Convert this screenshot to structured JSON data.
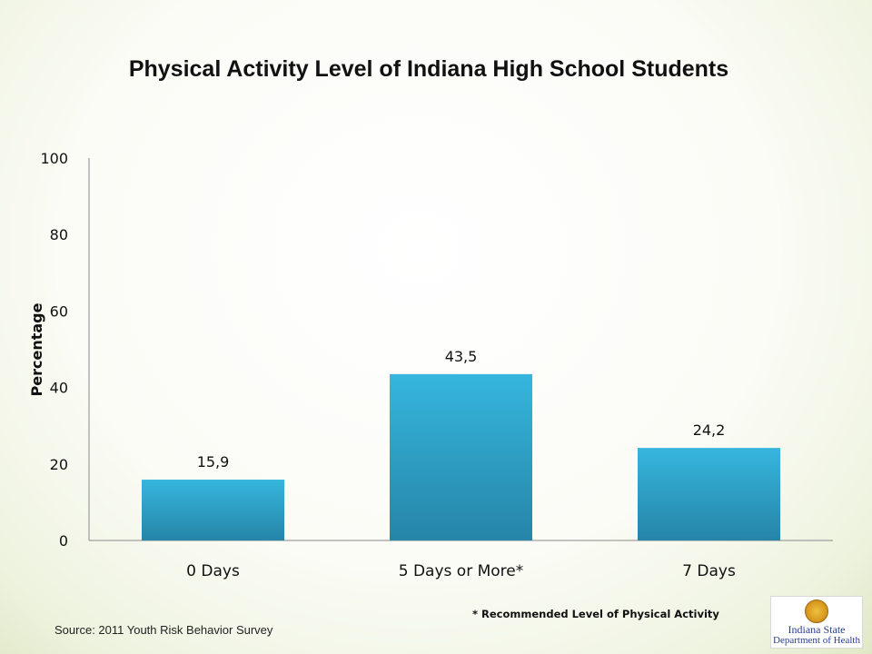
{
  "chart_data": {
    "type": "bar",
    "title": "Physical Activity Level of Indiana High School Students",
    "ylabel": "Percentage",
    "xlabel": "",
    "categories": [
      "0 Days",
      "5 Days or More*",
      "7 Days"
    ],
    "values": [
      15.9,
      43.5,
      24.2
    ],
    "data_labels": [
      "15,9",
      "43,5",
      "24,2"
    ],
    "ylim": [
      0,
      100
    ],
    "yticks": [
      0,
      20,
      40,
      60,
      80,
      100
    ],
    "grid": false,
    "bar_color": "#2ea3cc"
  },
  "footnote": "* Recommended Level of Physical Activity",
  "source": "Source: 2011 Youth Risk Behavior Survey",
  "logo": {
    "line1": "Indiana State",
    "line2": "Department of Health"
  }
}
